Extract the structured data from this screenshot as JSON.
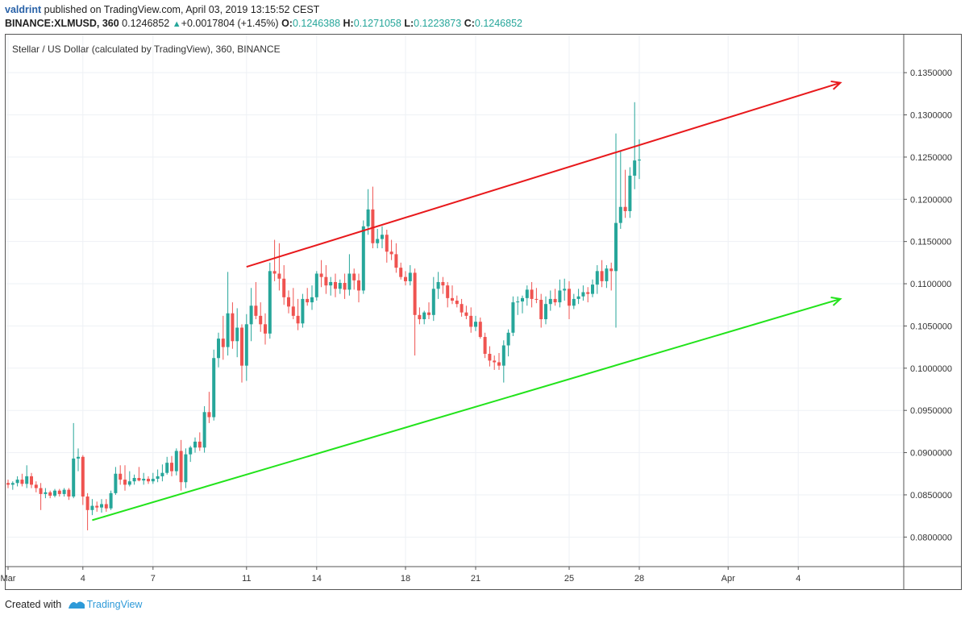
{
  "header": {
    "user": "valdrint",
    "published_text": " published on TradingView.com, April 03, 2019 13:15:52 CEST",
    "symbol": "BINANCE:XLMUSD, 360",
    "last": "0.1246852",
    "change": "+0.0017804 (+1.45%)",
    "o_label": "O:",
    "o_value": "0.1246388",
    "h_label": "H:",
    "h_value": "0.1271058",
    "l_label": "L:",
    "l_value": "0.1223873",
    "c_label": "C:",
    "c_value": "0.1246852"
  },
  "footer": {
    "created_with": "Created with",
    "brand": "TradingView"
  },
  "colors": {
    "up": "#26a69a",
    "down": "#ef5350",
    "resistance": "#e8191c",
    "support": "#22e31b",
    "grid": "#eef1f5"
  },
  "chart_data": {
    "type": "candlestick",
    "title": "Stellar / US Dollar (calculated by TradingView), 360, BINANCE",
    "ylim": [
      0.0765,
      0.1395
    ],
    "y_ticks": [
      0.08,
      0.085,
      0.09,
      0.095,
      0.1,
      0.105,
      0.11,
      0.115,
      0.12,
      0.125,
      0.13,
      0.135
    ],
    "y_tick_labels": [
      "0.0800000",
      "0.0850000",
      "0.0900000",
      "0.0950000",
      "0.1000000",
      "0.1050000",
      "0.1100000",
      "0.1150000",
      "0.1200000",
      "0.1250000",
      "0.1300000",
      "0.1350000"
    ],
    "x_ticks": [
      {
        "label": "Mar",
        "index": 0
      },
      {
        "label": "4",
        "index": 16
      },
      {
        "label": "7",
        "index": 31
      },
      {
        "label": "11",
        "index": 51
      },
      {
        "label": "14",
        "index": 66
      },
      {
        "label": "18",
        "index": 85
      },
      {
        "label": "21",
        "index": 100
      },
      {
        "label": "25",
        "index": 120
      },
      {
        "label": "28",
        "index": 135
      },
      {
        "label": "Apr",
        "index": 154
      },
      {
        "label": "4",
        "index": 169
      }
    ],
    "candles": [
      [
        0.0864,
        0.0868,
        0.0858,
        0.0862
      ],
      [
        0.0862,
        0.0866,
        0.0856,
        0.0864
      ],
      [
        0.0864,
        0.0872,
        0.086,
        0.0868
      ],
      [
        0.0868,
        0.0875,
        0.086,
        0.0863
      ],
      [
        0.0863,
        0.0885,
        0.0858,
        0.0872
      ],
      [
        0.0872,
        0.0876,
        0.0858,
        0.0862
      ],
      [
        0.0862,
        0.0866,
        0.0853,
        0.0858
      ],
      [
        0.0858,
        0.0864,
        0.0832,
        0.0851
      ],
      [
        0.0851,
        0.0858,
        0.0846,
        0.0853
      ],
      [
        0.0853,
        0.0855,
        0.0846,
        0.0849
      ],
      [
        0.0849,
        0.0857,
        0.0847,
        0.0855
      ],
      [
        0.0855,
        0.0857,
        0.0848,
        0.0851
      ],
      [
        0.0851,
        0.0858,
        0.0848,
        0.0856
      ],
      [
        0.0856,
        0.0858,
        0.0844,
        0.0848
      ],
      [
        0.0848,
        0.0935,
        0.0846,
        0.0893
      ],
      [
        0.0893,
        0.0905,
        0.0878,
        0.0895
      ],
      [
        0.0895,
        0.0897,
        0.0838,
        0.0848
      ],
      [
        0.0848,
        0.0852,
        0.0808,
        0.0832
      ],
      [
        0.0832,
        0.0845,
        0.0826,
        0.0837
      ],
      [
        0.0837,
        0.0842,
        0.083,
        0.0835
      ],
      [
        0.0835,
        0.0845,
        0.0829,
        0.0839
      ],
      [
        0.0839,
        0.0845,
        0.083,
        0.0834
      ],
      [
        0.0834,
        0.0855,
        0.0832,
        0.0852
      ],
      [
        0.0852,
        0.0883,
        0.085,
        0.0875
      ],
      [
        0.0875,
        0.0885,
        0.0862,
        0.0868
      ],
      [
        0.0868,
        0.0885,
        0.0855,
        0.0862
      ],
      [
        0.0862,
        0.0878,
        0.086,
        0.0866
      ],
      [
        0.0866,
        0.0874,
        0.0862,
        0.087
      ],
      [
        0.087,
        0.0883,
        0.0866,
        0.0867
      ],
      [
        0.0867,
        0.0876,
        0.0862,
        0.0869
      ],
      [
        0.0869,
        0.0872,
        0.0863,
        0.0866
      ],
      [
        0.0866,
        0.0876,
        0.0863,
        0.0869
      ],
      [
        0.0869,
        0.088,
        0.0865,
        0.0872
      ],
      [
        0.0872,
        0.0886,
        0.0866,
        0.0876
      ],
      [
        0.0876,
        0.0895,
        0.0874,
        0.0888
      ],
      [
        0.0888,
        0.0896,
        0.0872,
        0.0878
      ],
      [
        0.0878,
        0.0905,
        0.0873,
        0.0902
      ],
      [
        0.0902,
        0.0915,
        0.0855,
        0.0865
      ],
      [
        0.0865,
        0.0905,
        0.0858,
        0.0898
      ],
      [
        0.0898,
        0.0908,
        0.0889,
        0.0906
      ],
      [
        0.0906,
        0.0918,
        0.09,
        0.0913
      ],
      [
        0.0913,
        0.0924,
        0.0902,
        0.0906
      ],
      [
        0.0906,
        0.0955,
        0.09,
        0.0948
      ],
      [
        0.0948,
        0.0972,
        0.0935,
        0.0942
      ],
      [
        0.0942,
        0.1022,
        0.0938,
        0.1012
      ],
      [
        0.1012,
        0.1042,
        0.1001,
        0.1035
      ],
      [
        0.1035,
        0.1062,
        0.101,
        0.1025
      ],
      [
        0.1025,
        0.1114,
        0.1015,
        0.1065
      ],
      [
        0.1065,
        0.1078,
        0.1023,
        0.1032
      ],
      [
        0.1032,
        0.1071,
        0.1013,
        0.1048
      ],
      [
        0.1048,
        0.1052,
        0.0983,
        0.1003
      ],
      [
        0.1003,
        0.1064,
        0.0985,
        0.1052
      ],
      [
        0.1052,
        0.1095,
        0.1032,
        0.1074
      ],
      [
        0.1074,
        0.1102,
        0.1058,
        0.1062
      ],
      [
        0.1062,
        0.1078,
        0.1043,
        0.1052
      ],
      [
        0.1052,
        0.1065,
        0.1028,
        0.1041
      ],
      [
        0.1041,
        0.1125,
        0.1035,
        0.1115
      ],
      [
        0.1115,
        0.1152,
        0.1103,
        0.1112
      ],
      [
        0.1112,
        0.1148,
        0.1092,
        0.1106
      ],
      [
        0.1106,
        0.1122,
        0.1075,
        0.1084
      ],
      [
        0.1084,
        0.1092,
        0.1065,
        0.1073
      ],
      [
        0.1073,
        0.1095,
        0.1058,
        0.1062
      ],
      [
        0.1062,
        0.1082,
        0.1045,
        0.1053
      ],
      [
        0.1053,
        0.1088,
        0.1048,
        0.1082
      ],
      [
        0.1082,
        0.1095,
        0.1074,
        0.1078
      ],
      [
        0.1078,
        0.1098,
        0.1069,
        0.1084
      ],
      [
        0.1084,
        0.1115,
        0.108,
        0.1112
      ],
      [
        0.1112,
        0.1128,
        0.1096,
        0.1108
      ],
      [
        0.1108,
        0.1122,
        0.1088,
        0.1098
      ],
      [
        0.1098,
        0.1108,
        0.1086,
        0.1102
      ],
      [
        0.1102,
        0.1112,
        0.1084,
        0.1094
      ],
      [
        0.1094,
        0.1105,
        0.1088,
        0.1101
      ],
      [
        0.1101,
        0.1112,
        0.1082,
        0.1093
      ],
      [
        0.1093,
        0.1135,
        0.1086,
        0.1112
      ],
      [
        0.1112,
        0.1118,
        0.1093,
        0.1104
      ],
      [
        0.1104,
        0.1112,
        0.1078,
        0.1092
      ],
      [
        0.1092,
        0.1175,
        0.1088,
        0.1168
      ],
      [
        0.1168,
        0.1212,
        0.1158,
        0.1188
      ],
      [
        0.1188,
        0.1215,
        0.1142,
        0.1148
      ],
      [
        0.1148,
        0.1165,
        0.1142,
        0.1153
      ],
      [
        0.1153,
        0.1168,
        0.1142,
        0.1158
      ],
      [
        0.1158,
        0.1164,
        0.1125,
        0.1138
      ],
      [
        0.1138,
        0.1152,
        0.1128,
        0.1135
      ],
      [
        0.1135,
        0.1148,
        0.1113,
        0.1119
      ],
      [
        0.1119,
        0.1125,
        0.1105,
        0.1108
      ],
      [
        0.1108,
        0.1115,
        0.1098,
        0.1103
      ],
      [
        0.1103,
        0.1122,
        0.1098,
        0.1113
      ],
      [
        0.1113,
        0.1118,
        0.1015,
        0.1063
      ],
      [
        0.1063,
        0.1072,
        0.1052,
        0.1058
      ],
      [
        0.1058,
        0.1068,
        0.1052,
        0.1066
      ],
      [
        0.1066,
        0.1078,
        0.1058,
        0.1063
      ],
      [
        0.1063,
        0.1108,
        0.1056,
        0.1094
      ],
      [
        0.1094,
        0.1114,
        0.1082,
        0.1102
      ],
      [
        0.1102,
        0.1108,
        0.1088,
        0.1098
      ],
      [
        0.1098,
        0.1102,
        0.1072,
        0.1083
      ],
      [
        0.1083,
        0.1098,
        0.1076,
        0.108
      ],
      [
        0.108,
        0.1086,
        0.1072,
        0.1076
      ],
      [
        0.1076,
        0.1082,
        0.1061,
        0.1066
      ],
      [
        0.1066,
        0.1074,
        0.1058,
        0.1062
      ],
      [
        0.1062,
        0.1072,
        0.1042,
        0.1049
      ],
      [
        0.1049,
        0.1062,
        0.1044,
        0.1055
      ],
      [
        0.1055,
        0.106,
        0.1035,
        0.1037
      ],
      [
        0.1037,
        0.1042,
        0.1012,
        0.1017
      ],
      [
        0.1017,
        0.1026,
        0.1002,
        0.1009
      ],
      [
        0.1009,
        0.1015,
        0.0998,
        0.1007
      ],
      [
        0.1007,
        0.1018,
        0.0998,
        0.1003
      ],
      [
        0.1003,
        0.1033,
        0.0983,
        0.1027
      ],
      [
        0.1027,
        0.1046,
        0.1014,
        0.1042
      ],
      [
        0.1042,
        0.1085,
        0.1038,
        0.1078
      ],
      [
        0.1078,
        0.1085,
        0.1063,
        0.1079
      ],
      [
        0.1079,
        0.1086,
        0.1065,
        0.1083
      ],
      [
        0.1083,
        0.1098,
        0.1074,
        0.1093
      ],
      [
        0.1093,
        0.1102,
        0.1072,
        0.1082
      ],
      [
        0.1082,
        0.1095,
        0.1077,
        0.1081
      ],
      [
        0.1081,
        0.1088,
        0.1048,
        0.1058
      ],
      [
        0.1058,
        0.1085,
        0.1052,
        0.1076
      ],
      [
        0.1076,
        0.1092,
        0.1068,
        0.1082
      ],
      [
        0.1082,
        0.1094,
        0.1074,
        0.1078
      ],
      [
        0.1078,
        0.1105,
        0.1072,
        0.1092
      ],
      [
        0.1092,
        0.1106,
        0.108,
        0.1094
      ],
      [
        0.1094,
        0.1103,
        0.1058,
        0.1074
      ],
      [
        0.1074,
        0.1088,
        0.107,
        0.1082
      ],
      [
        0.1082,
        0.1094,
        0.1076,
        0.1085
      ],
      [
        0.1085,
        0.1098,
        0.108,
        0.109
      ],
      [
        0.109,
        0.1096,
        0.1078,
        0.1088
      ],
      [
        0.1088,
        0.1105,
        0.1084,
        0.1099
      ],
      [
        0.1099,
        0.1122,
        0.1088,
        0.1115
      ],
      [
        0.1115,
        0.1128,
        0.1096,
        0.1103
      ],
      [
        0.1103,
        0.1122,
        0.1095,
        0.1118
      ],
      [
        0.1118,
        0.1125,
        0.1092,
        0.1115
      ],
      [
        0.1115,
        0.1278,
        0.1048,
        0.1172
      ],
      [
        0.1172,
        0.1258,
        0.1165,
        0.1191
      ],
      [
        0.1191,
        0.1235,
        0.1178,
        0.1186
      ],
      [
        0.1186,
        0.1238,
        0.1178,
        0.1228
      ],
      [
        0.1228,
        0.1315,
        0.1212,
        0.1246
      ],
      [
        0.1246,
        0.1271,
        0.1224,
        0.1247
      ]
    ],
    "trend_lines": [
      {
        "name": "resistance",
        "from": {
          "index": 51,
          "value": 0.112
        },
        "to": {
          "index": 178,
          "value": 0.1338
        },
        "arrow": true
      },
      {
        "name": "support",
        "from": {
          "index": 18,
          "value": 0.082
        },
        "to": {
          "index": 178,
          "value": 0.1082
        },
        "arrow": true
      }
    ]
  }
}
